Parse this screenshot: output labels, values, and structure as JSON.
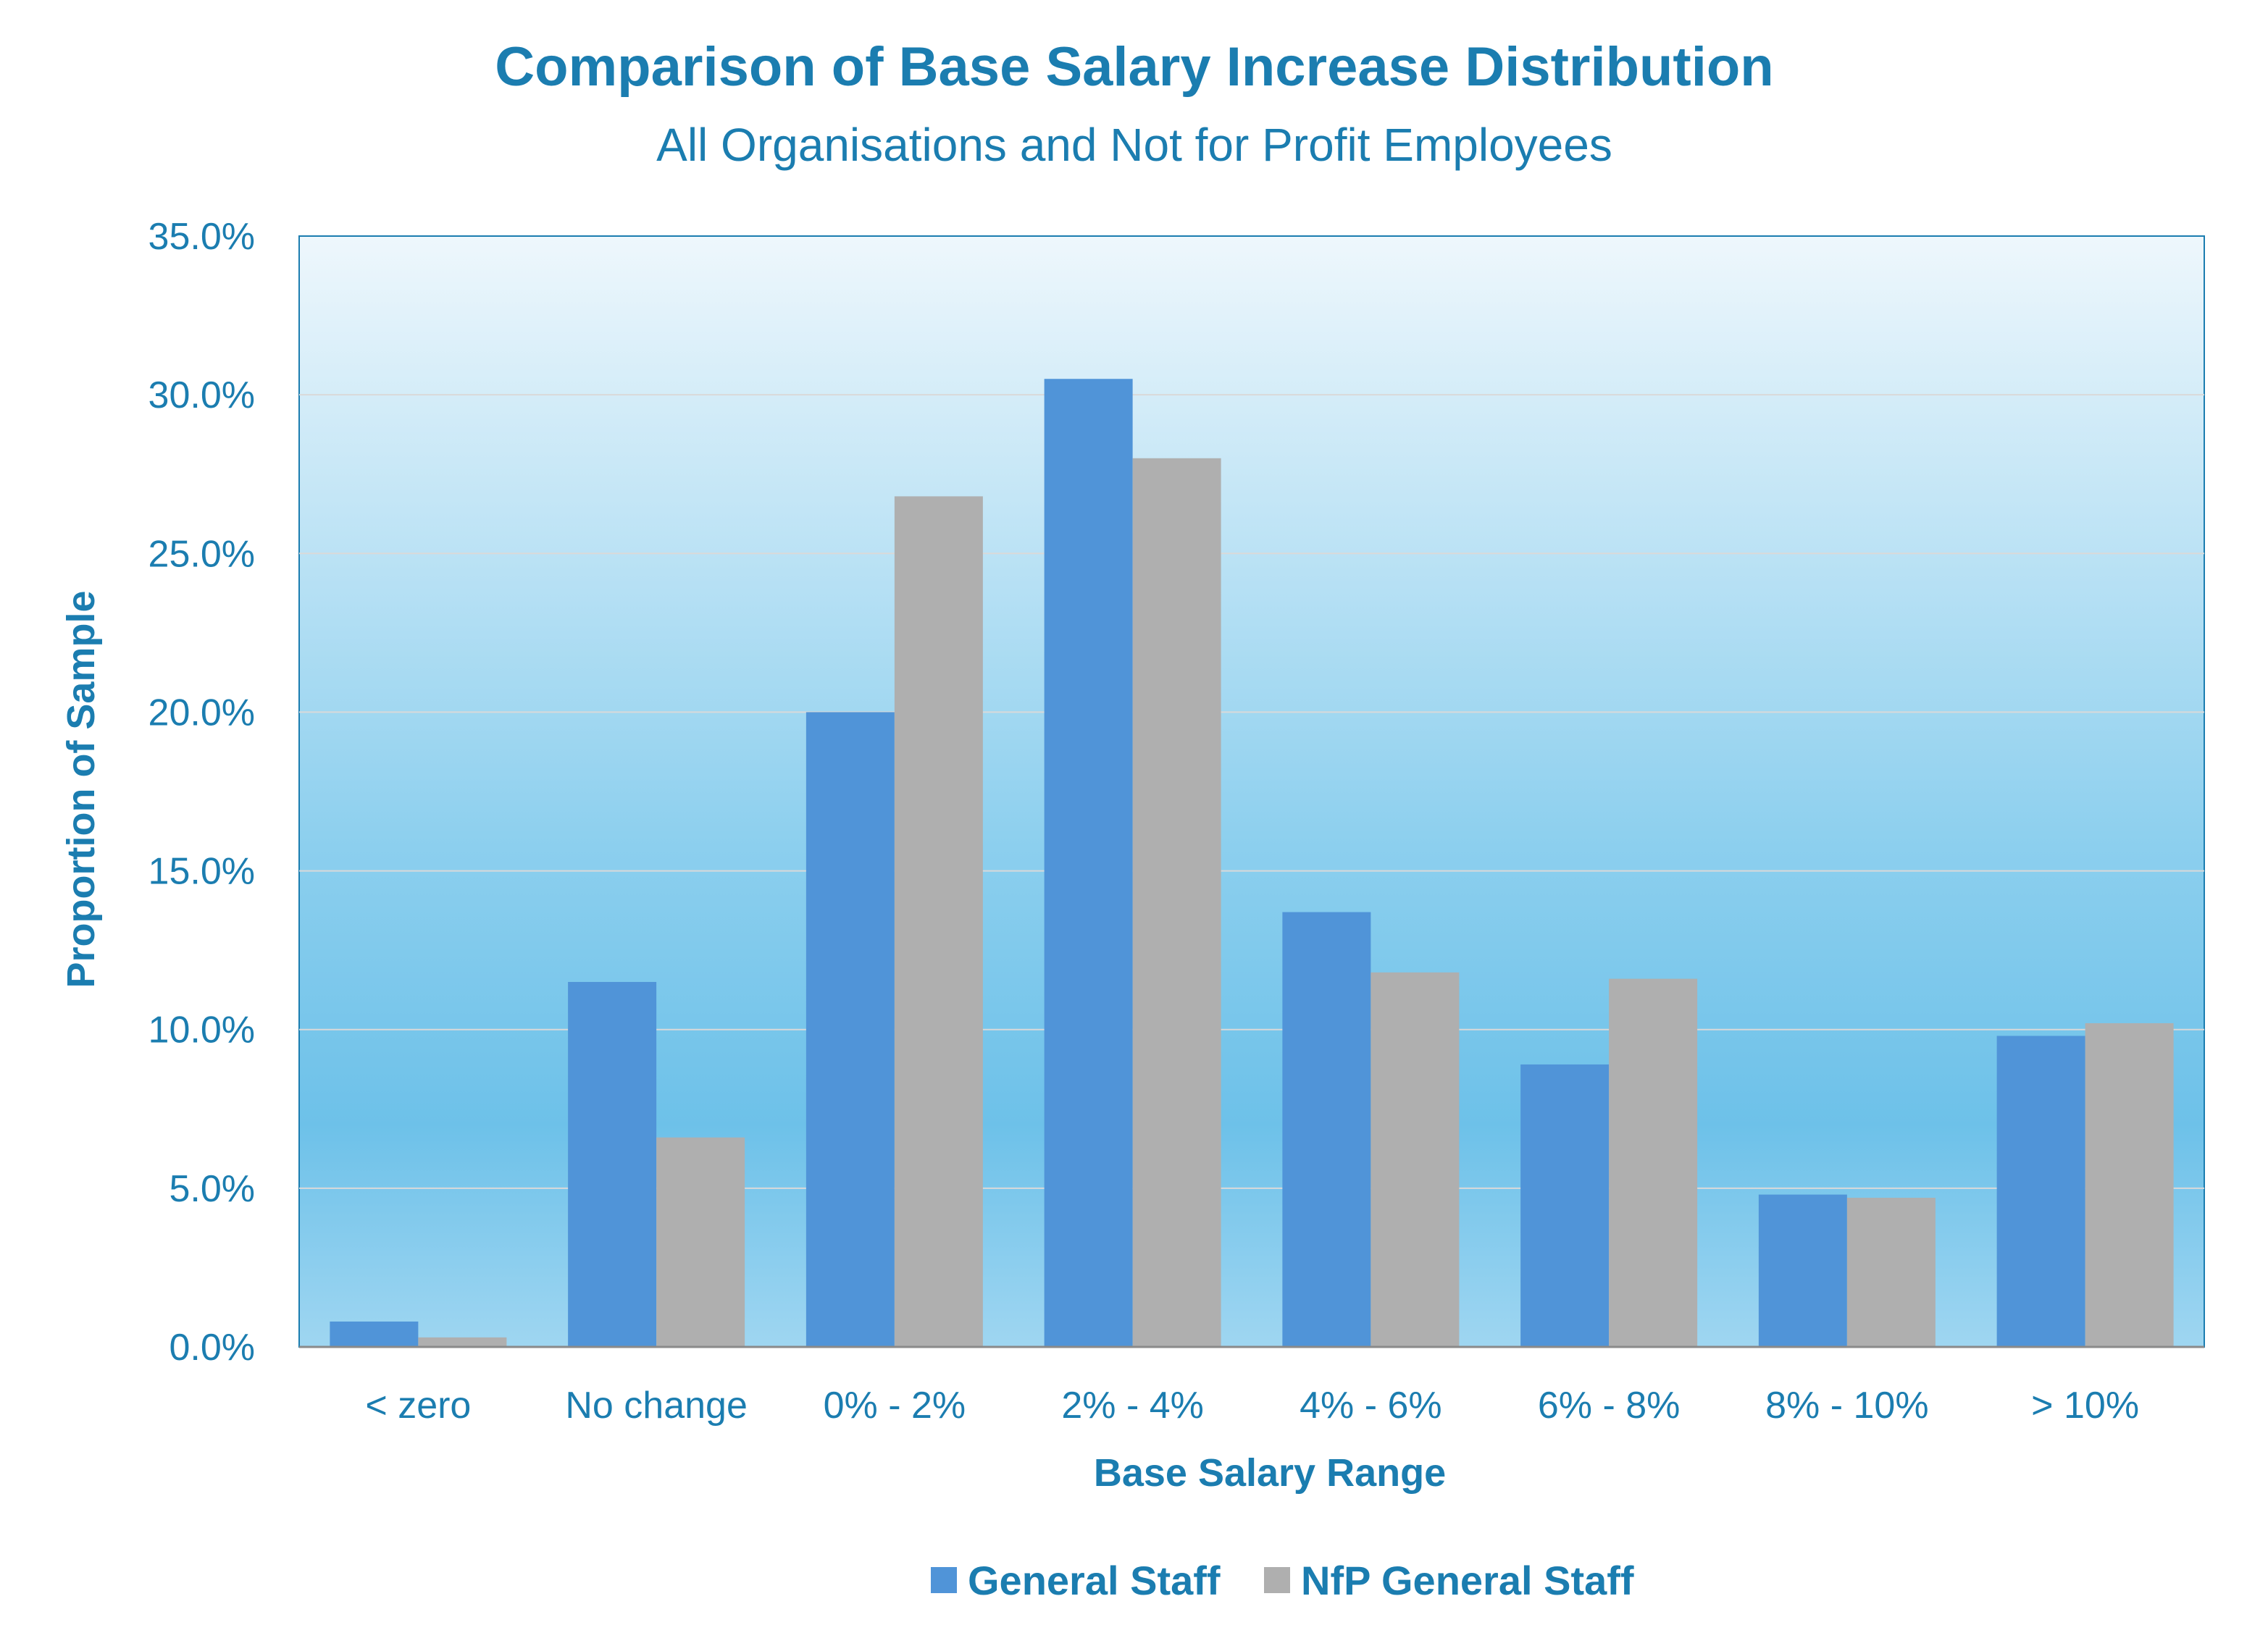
{
  "chart_data": {
    "type": "bar",
    "title": "Comparison of Base Salary Increase Distribution",
    "subtitle": "All Organisations and Not for Profit Employees",
    "xlabel": "Base Salary Range",
    "ylabel": "Proportion of Sample",
    "categories": [
      "< zero",
      "No change",
      "0% - 2%",
      "2% - 4%",
      "4% - 6%",
      "6% - 8%",
      "8% - 10%",
      "> 10%"
    ],
    "series": [
      {
        "name": "General Staff",
        "color": "#5094d8",
        "values": [
          0.8,
          11.5,
          20.0,
          30.5,
          13.7,
          8.9,
          4.8,
          9.8
        ]
      },
      {
        "name": "NfP General Staff",
        "color": "#afafaf",
        "values": [
          0.3,
          6.6,
          26.8,
          28.0,
          11.8,
          11.6,
          4.7,
          10.2
        ]
      }
    ],
    "ylim": [
      0,
      35
    ],
    "yticks": [
      0,
      5,
      10,
      15,
      20,
      25,
      30,
      35
    ],
    "ytick_labels": [
      "0.0%",
      "5.0%",
      "10.0%",
      "15.0%",
      "20.0%",
      "25.0%",
      "30.0%",
      "35.0%"
    ],
    "grid": true,
    "legend_position": "bottom-center",
    "text_color": "#1b7db0",
    "plot_background_top": "#eef7fc",
    "plot_background_bottom": "#69c0e8"
  }
}
